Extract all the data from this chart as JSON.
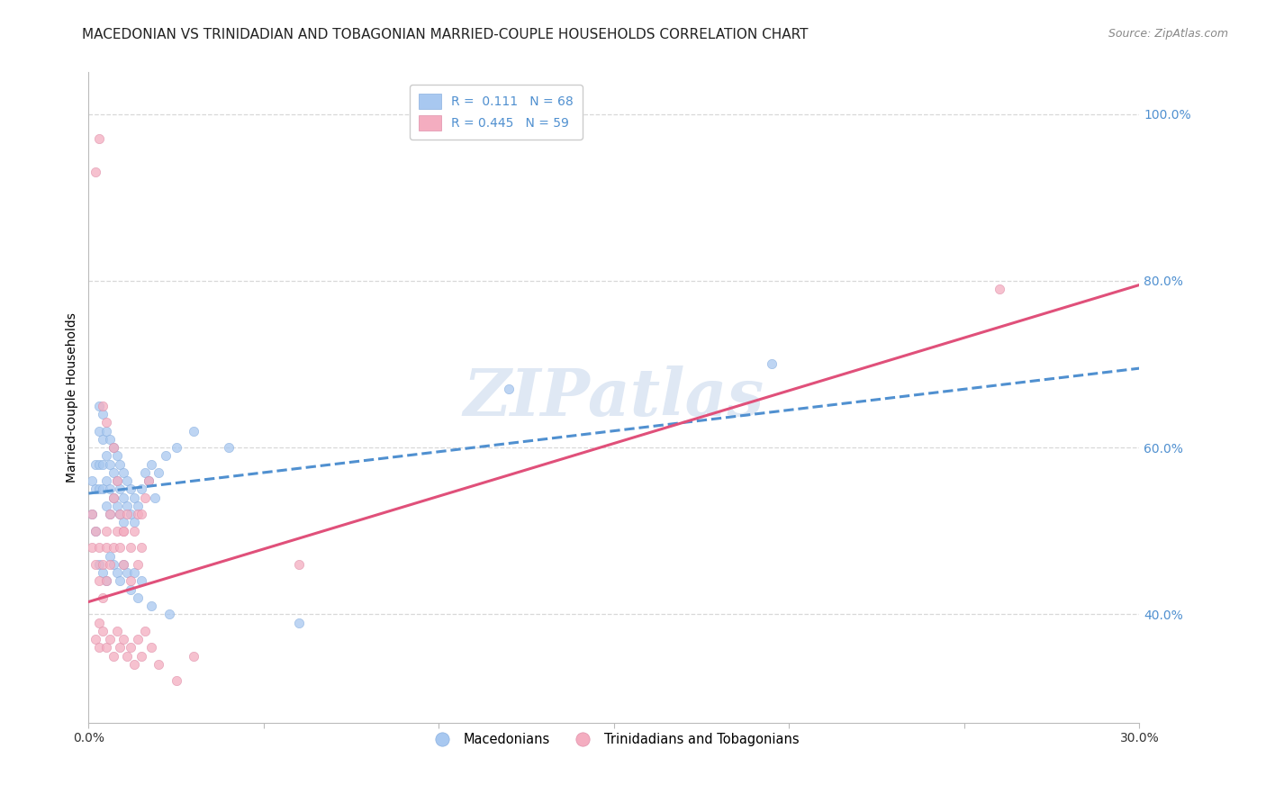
{
  "title": "MACEDONIAN VS TRINIDADIAN AND TOBAGONIAN MARRIED-COUPLE HOUSEHOLDS CORRELATION CHART",
  "source": "Source: ZipAtlas.com",
  "ylabel": "Married-couple Households",
  "watermark": "ZIPatlas",
  "xmin": 0.0,
  "xmax": 0.3,
  "ymin": 0.27,
  "ymax": 1.05,
  "yticks": [
    0.4,
    0.6,
    0.8,
    1.0
  ],
  "ytick_labels": [
    "40.0%",
    "60.0%",
    "80.0%",
    "100.0%"
  ],
  "xticks": [
    0.0,
    0.05,
    0.1,
    0.15,
    0.2,
    0.25,
    0.3
  ],
  "xtick_labels": [
    "0.0%",
    "",
    "",
    "",
    "",
    "",
    "30.0%"
  ],
  "blue_color": "#a8c8f0",
  "pink_color": "#f4adc0",
  "blue_line_color": "#5090d0",
  "pink_line_color": "#e0507a",
  "legend_blue_R": "0.111",
  "legend_blue_N": "68",
  "legend_pink_R": "0.445",
  "legend_pink_N": "59",
  "blue_scatter_x": [
    0.001,
    0.001,
    0.002,
    0.002,
    0.002,
    0.003,
    0.003,
    0.003,
    0.003,
    0.004,
    0.004,
    0.004,
    0.004,
    0.005,
    0.005,
    0.005,
    0.005,
    0.006,
    0.006,
    0.006,
    0.006,
    0.007,
    0.007,
    0.007,
    0.008,
    0.008,
    0.008,
    0.009,
    0.009,
    0.009,
    0.01,
    0.01,
    0.01,
    0.011,
    0.011,
    0.012,
    0.012,
    0.013,
    0.013,
    0.014,
    0.015,
    0.016,
    0.017,
    0.018,
    0.019,
    0.02,
    0.022,
    0.025,
    0.03,
    0.04,
    0.003,
    0.004,
    0.005,
    0.006,
    0.007,
    0.008,
    0.009,
    0.01,
    0.011,
    0.012,
    0.013,
    0.014,
    0.015,
    0.018,
    0.023,
    0.06,
    0.12,
    0.195
  ],
  "blue_scatter_y": [
    0.56,
    0.52,
    0.58,
    0.55,
    0.5,
    0.65,
    0.62,
    0.58,
    0.55,
    0.64,
    0.61,
    0.58,
    0.55,
    0.62,
    0.59,
    0.56,
    0.53,
    0.61,
    0.58,
    0.55,
    0.52,
    0.6,
    0.57,
    0.54,
    0.59,
    0.56,
    0.53,
    0.58,
    0.55,
    0.52,
    0.57,
    0.54,
    0.51,
    0.56,
    0.53,
    0.55,
    0.52,
    0.54,
    0.51,
    0.53,
    0.55,
    0.57,
    0.56,
    0.58,
    0.54,
    0.57,
    0.59,
    0.6,
    0.62,
    0.6,
    0.46,
    0.45,
    0.44,
    0.47,
    0.46,
    0.45,
    0.44,
    0.46,
    0.45,
    0.43,
    0.45,
    0.42,
    0.44,
    0.41,
    0.4,
    0.39,
    0.67,
    0.7
  ],
  "pink_scatter_x": [
    0.001,
    0.001,
    0.002,
    0.002,
    0.003,
    0.003,
    0.004,
    0.004,
    0.005,
    0.005,
    0.005,
    0.006,
    0.006,
    0.007,
    0.007,
    0.008,
    0.008,
    0.009,
    0.009,
    0.01,
    0.01,
    0.011,
    0.012,
    0.012,
    0.013,
    0.014,
    0.014,
    0.015,
    0.016,
    0.017,
    0.002,
    0.003,
    0.003,
    0.004,
    0.005,
    0.006,
    0.007,
    0.008,
    0.009,
    0.01,
    0.011,
    0.012,
    0.013,
    0.014,
    0.015,
    0.016,
    0.018,
    0.02,
    0.025,
    0.03,
    0.002,
    0.003,
    0.004,
    0.005,
    0.007,
    0.01,
    0.015,
    0.06,
    0.26
  ],
  "pink_scatter_y": [
    0.52,
    0.48,
    0.5,
    0.46,
    0.48,
    0.44,
    0.46,
    0.42,
    0.48,
    0.44,
    0.5,
    0.46,
    0.52,
    0.48,
    0.54,
    0.5,
    0.56,
    0.52,
    0.48,
    0.5,
    0.46,
    0.52,
    0.48,
    0.44,
    0.5,
    0.52,
    0.46,
    0.48,
    0.54,
    0.56,
    0.37,
    0.36,
    0.39,
    0.38,
    0.36,
    0.37,
    0.35,
    0.38,
    0.36,
    0.37,
    0.35,
    0.36,
    0.34,
    0.37,
    0.35,
    0.38,
    0.36,
    0.34,
    0.32,
    0.35,
    0.93,
    0.97,
    0.65,
    0.63,
    0.6,
    0.5,
    0.52,
    0.46,
    0.79
  ],
  "blue_trend_x": [
    0.0,
    0.3
  ],
  "blue_trend_y": [
    0.545,
    0.695
  ],
  "pink_trend_x": [
    0.0,
    0.3
  ],
  "pink_trend_y": [
    0.415,
    0.795
  ],
  "grid_color": "#d8d8d8",
  "background_color": "#ffffff",
  "title_fontsize": 11,
  "source_fontsize": 9,
  "axis_fontsize": 9,
  "legend_fontsize": 10,
  "ylabel_fontsize": 10
}
